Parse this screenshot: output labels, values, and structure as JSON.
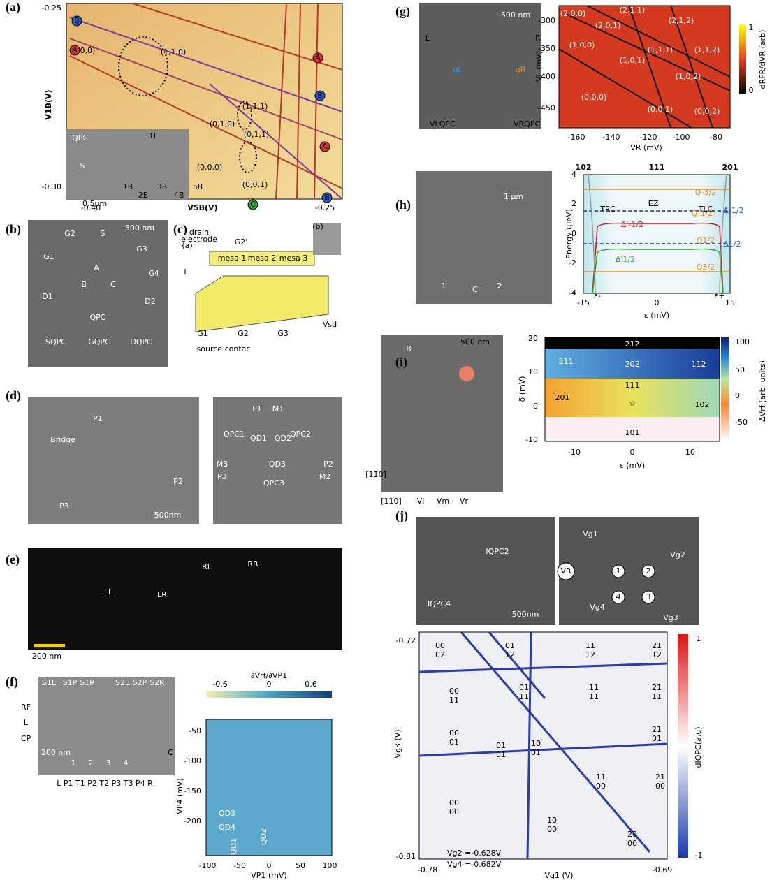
{
  "panels": [
    {
      "label": "(a)",
      "texts": [
        "-0.25",
        "-0.30",
        "-0.40",
        "-0.25",
        "V1B(V)",
        "V5B(V)",
        "(1,0,0)",
        "(1,1,0)",
        "(1,1,1)",
        "(0,1,0)",
        "(0,1,1)",
        "(0,0,0)",
        "(0,0,1)",
        "B",
        "A",
        "A",
        "B",
        "A",
        "B",
        "C",
        "IQPC",
        "S",
        "3T",
        "1B",
        "3B",
        "5B",
        "2B",
        "4B",
        "0.5μm"
      ]
    },
    {
      "label": "(b)",
      "texts": [
        "500 nm",
        "G2",
        "S",
        "G3",
        "G1",
        "A",
        "G4",
        "B",
        "C",
        "D1",
        "D2",
        "QPC",
        "SQPC",
        "GQPC",
        "DQPC"
      ]
    },
    {
      "label": "(c)",
      "texts": [
        "(a)",
        "drain",
        "electrode",
        "G2'",
        "mesa 1",
        "mesa 2",
        "mesa 3",
        "(b)",
        "G1",
        "G2",
        "G3",
        "source contac",
        "Vsd",
        "I"
      ]
    },
    {
      "label": "(d)",
      "texts": [
        "Bridge",
        "P1",
        "P2",
        "P3",
        "500nm",
        "P1",
        "M1",
        "QPC1",
        "QPC2",
        "QD1",
        "QD2",
        "QD3",
        "M3",
        "P2",
        "P3",
        "M2",
        "QPC3"
      ]
    },
    {
      "label": "(e)",
      "texts": [
        "LL",
        "LR",
        "RL",
        "RR",
        "200 nm"
      ]
    },
    {
      "label": "(f)",
      "texts": [
        "S1L",
        "S1P",
        "S1R",
        "S2L",
        "S2P",
        "S2R",
        "RF",
        "L",
        "CP",
        "200 nm",
        "C",
        "L P1 T1 P2 T2 P3 T3 P4 R",
        "1",
        "2",
        "3",
        "4",
        "∂Vrf/∂VP1",
        "-0.6",
        "0",
        "0.6",
        "-50",
        "-100",
        "-150",
        "-200",
        "VP4 (mV)",
        "-100",
        "-50",
        "0",
        "50",
        "100",
        "VP1 (mV)",
        "QD3",
        "QD4",
        "QD1",
        "QD2"
      ]
    },
    {
      "label": "(g)",
      "texts": [
        "500 nm",
        "L",
        "R",
        "gL",
        "gR",
        "VLQPC",
        "VRQPC",
        "-300",
        "-350",
        "-400",
        "-450",
        "-160",
        "-140",
        "-120",
        "-100",
        "-80",
        "VR (mV)",
        "VL (mV)",
        "1",
        "0",
        "dRFR/dVR (arb)",
        "(2,0,0)",
        "(2,0,1)",
        "(2,1,1)",
        "(2,1,2)",
        "(1,0,0)",
        "(1,0,1)",
        "(1,1,1)",
        "(1,1,2)",
        "(1,0,2)",
        "(0,0,0)",
        "(0,0,1)",
        "(0,0,2)"
      ]
    },
    {
      "label": "(h)",
      "texts": [
        "1 μm",
        "1",
        "C",
        "2",
        "102",
        "111",
        "201",
        "4",
        "2",
        "0",
        "-2",
        "-4",
        "-15",
        "0",
        "15",
        "ε (mV)",
        "Energy (μeV)",
        "TRC",
        "EZ",
        "TLC",
        "Q-3/2",
        "Q-1/2",
        "Δ-1/2",
        "Δ'-1/2",
        "Q1/2",
        "Δ1/2",
        "Δ'1/2",
        "Q3/2",
        "ε-",
        "ε+"
      ]
    },
    {
      "label": "(i)",
      "texts": [
        "B",
        "500 nm",
        "[11̄0]",
        "[110]",
        "Vl",
        "Vm",
        "Vr",
        "20",
        "10",
        "0",
        "-10",
        "δ (mV)",
        "-10",
        "0",
        "10",
        "ε (mV)",
        "212",
        "211",
        "202",
        "112",
        "201",
        "111",
        "102",
        "101",
        "☆",
        "100",
        "50",
        "0",
        "-50",
        "ΔVrf (arb. units)"
      ]
    },
    {
      "label": "(j)",
      "texts": [
        "IQPC2",
        "IQPC4",
        "500nm",
        "VR",
        "Vg1",
        "Vg2",
        "Vg4",
        "Vg3",
        "1",
        "2",
        "4",
        "3",
        "-0.72",
        "-0.81",
        "-0.78",
        "-0.69",
        "Vg1 (V)",
        "Vg3 (V)",
        "1",
        "-1",
        "dIQPC(a.u)",
        "00",
        "02",
        "01",
        "12",
        "11",
        "12",
        "21",
        "12",
        "00",
        "11",
        "01",
        "11",
        "11",
        "11",
        "21",
        "11",
        "00",
        "01",
        "01",
        "01",
        "10",
        "01",
        "21",
        "01",
        "11",
        "00",
        "21",
        "00",
        "00",
        "00",
        "10",
        "00",
        "20",
        "00",
        "Vg2 =-0.628V",
        "Vg4 =-0.682V"
      ]
    }
  ]
}
